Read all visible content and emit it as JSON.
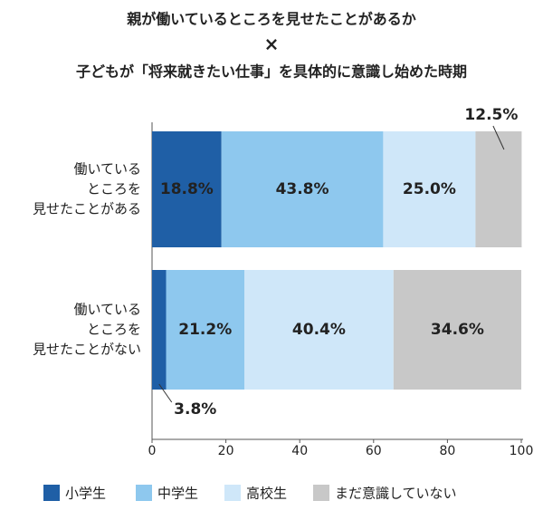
{
  "chart_data": {
    "type": "stacked-barh",
    "title": [
      "親が働いているところを見せたことがあるか",
      "×",
      "子どもが「将来就きたい仕事」を具体的に意識し始めた時期"
    ],
    "categories": [
      [
        "働いている",
        "ところを",
        "見せたことがある"
      ],
      [
        "働いている",
        "ところを",
        "見せたことがない"
      ]
    ],
    "series": [
      {
        "name": "小学生",
        "color": "#1f5fa6",
        "values": [
          18.8,
          3.8
        ],
        "value_labels": [
          "18.8%",
          "3.8%"
        ]
      },
      {
        "name": "中学生",
        "color": "#8ec8ee",
        "values": [
          43.8,
          21.2
        ],
        "value_labels": [
          "43.8%",
          "21.2%"
        ]
      },
      {
        "name": "高校生",
        "color": "#cfe7f9",
        "values": [
          25.0,
          40.4
        ],
        "value_labels": [
          "25.0%",
          "40.4%"
        ]
      },
      {
        "name": "まだ意識していない",
        "color": "#c8c8c8",
        "values": [
          12.5,
          34.6
        ],
        "value_labels": [
          "12.5%",
          "34.6%"
        ]
      }
    ],
    "xlim": [
      0,
      100
    ],
    "xticks": [
      0,
      20,
      40,
      60,
      80,
      100
    ]
  }
}
